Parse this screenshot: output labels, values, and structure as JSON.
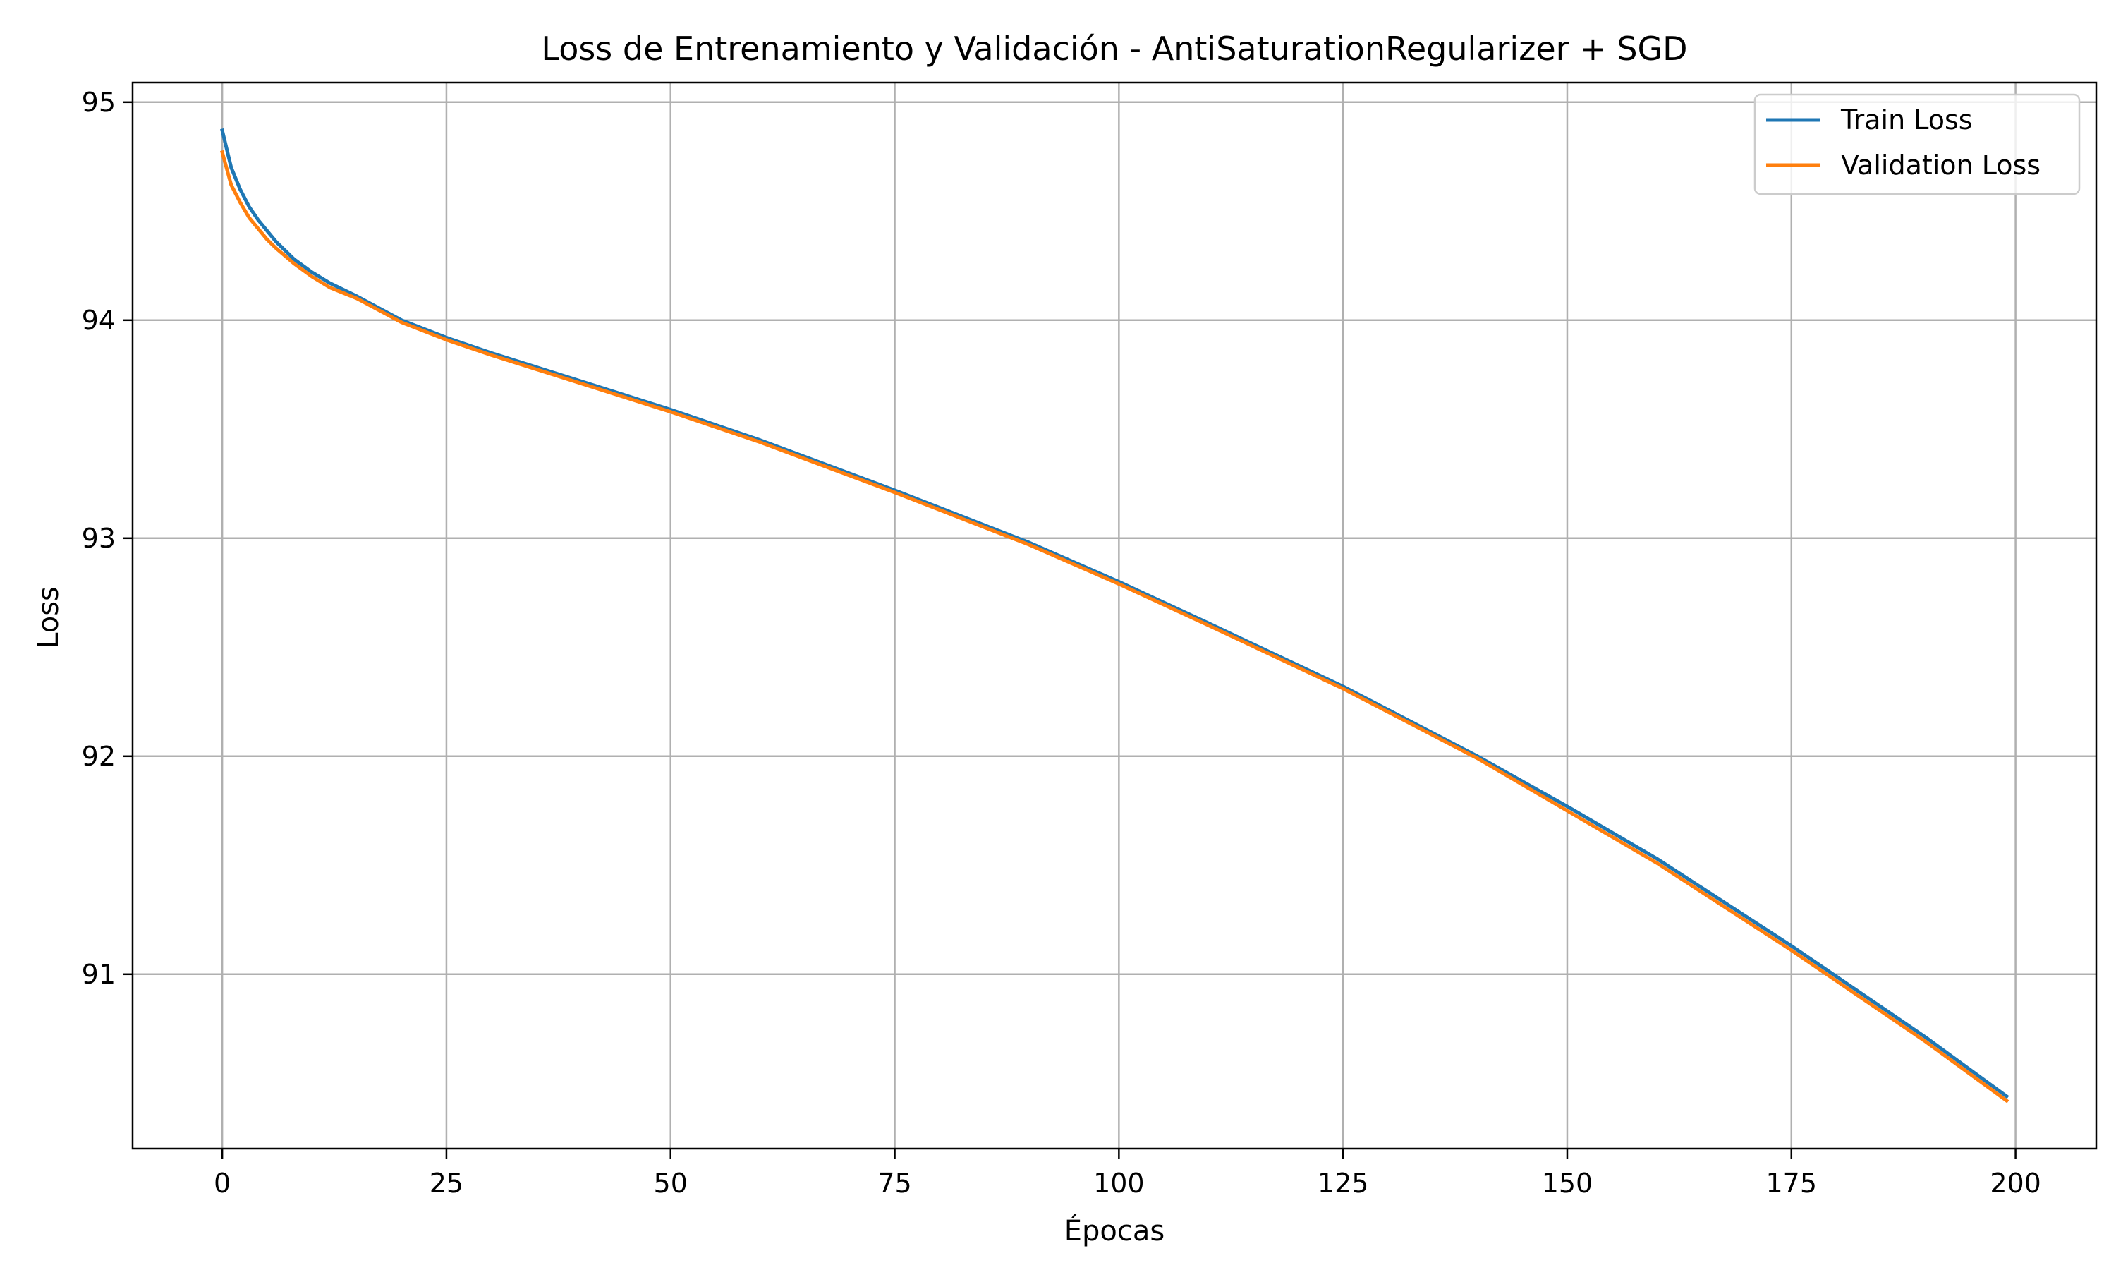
{
  "chart_data": {
    "type": "line",
    "title": "Loss de Entrenamiento y Validación - AntiSaturationRegularizer + SGD",
    "xlabel": "Épocas",
    "ylabel": "Loss",
    "xlim": [
      -10,
      209
    ],
    "ylim": [
      90.2,
      95.09
    ],
    "xticks": [
      0,
      25,
      50,
      75,
      100,
      125,
      150,
      175,
      200
    ],
    "yticks": [
      91,
      92,
      93,
      94,
      95
    ],
    "grid": true,
    "legend_position": "top-right",
    "series": [
      {
        "name": "Train Loss",
        "color": "#1f77b4",
        "x": [
          0,
          1,
          2,
          3,
          4,
          5,
          6,
          8,
          10,
          12,
          15,
          20,
          25,
          30,
          40,
          50,
          60,
          75,
          90,
          100,
          110,
          125,
          140,
          150,
          160,
          175,
          190,
          199
        ],
        "y": [
          94.87,
          94.7,
          94.6,
          94.52,
          94.46,
          94.41,
          94.36,
          94.28,
          94.22,
          94.17,
          94.11,
          94.0,
          93.92,
          93.85,
          93.72,
          93.59,
          93.45,
          93.22,
          92.98,
          92.8,
          92.61,
          92.32,
          92.0,
          91.77,
          91.53,
          91.13,
          90.71,
          90.44
        ]
      },
      {
        "name": "Validation Loss",
        "color": "#ff7f0e",
        "x": [
          0,
          1,
          2,
          3,
          4,
          5,
          6,
          8,
          10,
          12,
          15,
          20,
          25,
          30,
          40,
          50,
          60,
          75,
          90,
          100,
          110,
          125,
          140,
          150,
          160,
          175,
          190,
          199
        ],
        "y": [
          94.77,
          94.62,
          94.54,
          94.47,
          94.42,
          94.37,
          94.33,
          94.26,
          94.2,
          94.15,
          94.1,
          93.99,
          93.91,
          93.84,
          93.71,
          93.58,
          93.44,
          93.21,
          92.97,
          92.79,
          92.6,
          92.31,
          91.99,
          91.75,
          91.51,
          91.11,
          90.69,
          90.42
        ]
      }
    ]
  }
}
